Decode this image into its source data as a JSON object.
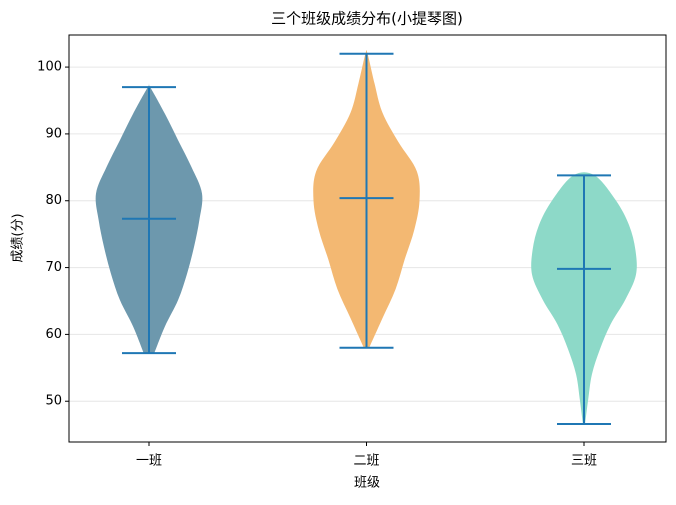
{
  "chart_data": {
    "type": "violin",
    "title": "三个班级成绩分布(小提琴图)",
    "xlabel": "班级",
    "ylabel": "成绩(分)",
    "categories": [
      "一班",
      "二班",
      "三班"
    ],
    "series": [
      {
        "name": "一班",
        "color": "#6d98ad",
        "min": 57.2,
        "max": 97,
        "mean": 77.3,
        "density": [
          0.1,
          0.3,
          0.55,
          0.72,
          0.85,
          0.95,
          1.0,
          0.8,
          0.55,
          0.3,
          0.02
        ]
      },
      {
        "name": "二班",
        "color": "#f3b872",
        "min": 58,
        "max": 102,
        "mean": 80.4,
        "density": [
          0.05,
          0.3,
          0.55,
          0.72,
          0.9,
          1.0,
          0.95,
          0.6,
          0.3,
          0.15,
          0.02
        ]
      },
      {
        "name": "三班",
        "color": "#8dd9c8",
        "min": 46.6,
        "max": 83.8,
        "mean": 69.8,
        "density": [
          0.02,
          0.08,
          0.15,
          0.3,
          0.5,
          0.78,
          0.98,
          0.97,
          0.85,
          0.6,
          0.2
        ]
      }
    ],
    "line_color": "#1f77b4",
    "ylim": [
      43.9,
      104.8
    ],
    "yticks": [
      50,
      60,
      70,
      80,
      90,
      100
    ],
    "grid": true
  }
}
